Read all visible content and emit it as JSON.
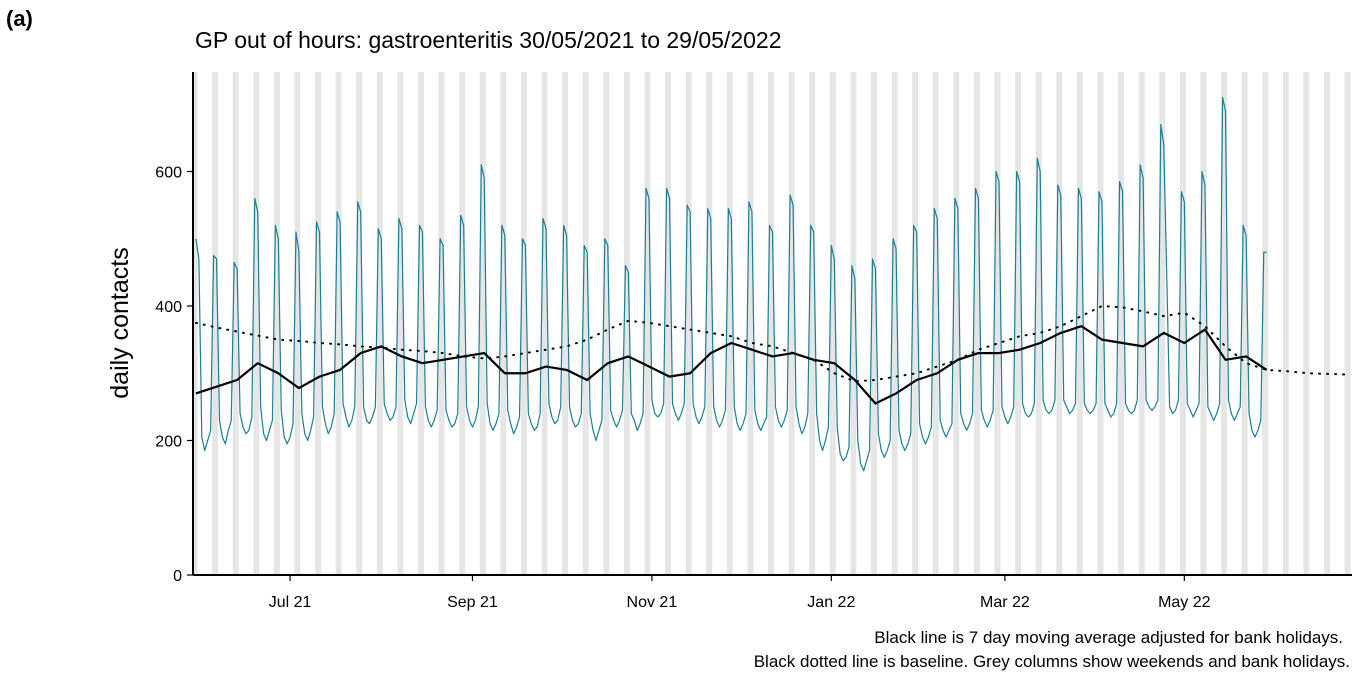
{
  "chart_data": {
    "type": "line",
    "panel_label": "(a)",
    "title": "GP out of hours: gastroenteritis 30/05/2021 to 29/05/2022",
    "y_label": "daily contacts",
    "annotations": [
      "Black line is 7 day moving average adjusted for bank holidays.",
      "Black dotted line is baseline. Grey columns show weekends and bank holidays."
    ],
    "xlim": [
      "2021-05-29",
      "2022-06-27"
    ],
    "xticks": [
      {
        "value": "2021-07-01",
        "label": "Jul 21"
      },
      {
        "value": "2021-09-01",
        "label": "Sep 21"
      },
      {
        "value": "2021-11-01",
        "label": "Nov 21"
      },
      {
        "value": "2022-01-01",
        "label": "Jan 22"
      },
      {
        "value": "2022-03-01",
        "label": "Mar 22"
      },
      {
        "value": "2022-05-01",
        "label": "May 22"
      }
    ],
    "ylim": [
      0,
      748
    ],
    "yticks": [
      0,
      200,
      400,
      600
    ],
    "weekend_shading": true,
    "shade_color": "#e5e5e5",
    "x": [
      "2021-05-30",
      "2021-05-31",
      "2021-06-01",
      "2021-06-02",
      "2021-06-03",
      "2021-06-04",
      "2021-06-05",
      "2021-06-06",
      "2021-06-07",
      "2021-06-08",
      "2021-06-09",
      "2021-06-10",
      "2021-06-11",
      "2021-06-12",
      "2021-06-13",
      "2021-06-14",
      "2021-06-15",
      "2021-06-16",
      "2021-06-17",
      "2021-06-18",
      "2021-06-19",
      "2021-06-20",
      "2021-06-21",
      "2021-06-22",
      "2021-06-23",
      "2021-06-24",
      "2021-06-25",
      "2021-06-26",
      "2021-06-27",
      "2021-06-28",
      "2021-06-29",
      "2021-06-30",
      "2021-07-01",
      "2021-07-02",
      "2021-07-03",
      "2021-07-04",
      "2021-07-05",
      "2021-07-06",
      "2021-07-07",
      "2021-07-08",
      "2021-07-09",
      "2021-07-10",
      "2021-07-11",
      "2021-07-12",
      "2021-07-13",
      "2021-07-14",
      "2021-07-15",
      "2021-07-16",
      "2021-07-17",
      "2021-07-18",
      "2021-07-19",
      "2021-07-20",
      "2021-07-21",
      "2021-07-22",
      "2021-07-23",
      "2021-07-24",
      "2021-07-25",
      "2021-07-26",
      "2021-07-27",
      "2021-07-28",
      "2021-07-29",
      "2021-07-30",
      "2021-07-31",
      "2021-08-01",
      "2021-08-02",
      "2021-08-03",
      "2021-08-04",
      "2021-08-05",
      "2021-08-06",
      "2021-08-07",
      "2021-08-08",
      "2021-08-09",
      "2021-08-10",
      "2021-08-11",
      "2021-08-12",
      "2021-08-13",
      "2021-08-14",
      "2021-08-15",
      "2021-08-16",
      "2021-08-17",
      "2021-08-18",
      "2021-08-19",
      "2021-08-20",
      "2021-08-21",
      "2021-08-22",
      "2021-08-23",
      "2021-08-24",
      "2021-08-25",
      "2021-08-26",
      "2021-08-27",
      "2021-08-28",
      "2021-08-29",
      "2021-08-30",
      "2021-08-31",
      "2021-09-01",
      "2021-09-02",
      "2021-09-03",
      "2021-09-04",
      "2021-09-05",
      "2021-09-06",
      "2021-09-07",
      "2021-09-08",
      "2021-09-09",
      "2021-09-10",
      "2021-09-11",
      "2021-09-12",
      "2021-09-13",
      "2021-09-14",
      "2021-09-15",
      "2021-09-16",
      "2021-09-17",
      "2021-09-18",
      "2021-09-19",
      "2021-09-20",
      "2021-09-21",
      "2021-09-22",
      "2021-09-23",
      "2021-09-24",
      "2021-09-25",
      "2021-09-26",
      "2021-09-27",
      "2021-09-28",
      "2021-09-29",
      "2021-09-30",
      "2021-10-01",
      "2021-10-02",
      "2021-10-03",
      "2021-10-04",
      "2021-10-05",
      "2021-10-06",
      "2021-10-07",
      "2021-10-08",
      "2021-10-09",
      "2021-10-10",
      "2021-10-11",
      "2021-10-12",
      "2021-10-13",
      "2021-10-14",
      "2021-10-15",
      "2021-10-16",
      "2021-10-17",
      "2021-10-18",
      "2021-10-19",
      "2021-10-20",
      "2021-10-21",
      "2021-10-22",
      "2021-10-23",
      "2021-10-24",
      "2021-10-25",
      "2021-10-26",
      "2021-10-27",
      "2021-10-28",
      "2021-10-29",
      "2021-10-30",
      "2021-10-31",
      "2021-11-01",
      "2021-11-02",
      "2021-11-03",
      "2021-11-04",
      "2021-11-05",
      "2021-11-06",
      "2021-11-07",
      "2021-11-08",
      "2021-11-09",
      "2021-11-10",
      "2021-11-11",
      "2021-11-12",
      "2021-11-13",
      "2021-11-14",
      "2021-11-15",
      "2021-11-16",
      "2021-11-17",
      "2021-11-18",
      "2021-11-19",
      "2021-11-20",
      "2021-11-21",
      "2021-11-22",
      "2021-11-23",
      "2021-11-24",
      "2021-11-25",
      "2021-11-26",
      "2021-11-27",
      "2021-11-28",
      "2021-11-29",
      "2021-11-30",
      "2021-12-01",
      "2021-12-02",
      "2021-12-03",
      "2021-12-04",
      "2021-12-05",
      "2021-12-06",
      "2021-12-07",
      "2021-12-08",
      "2021-12-09",
      "2021-12-10",
      "2021-12-11",
      "2021-12-12",
      "2021-12-13",
      "2021-12-14",
      "2021-12-15",
      "2021-12-16",
      "2021-12-17",
      "2021-12-18",
      "2021-12-19",
      "2021-12-20",
      "2021-12-21",
      "2021-12-22",
      "2021-12-23",
      "2021-12-24",
      "2021-12-25",
      "2021-12-26",
      "2021-12-27",
      "2021-12-28",
      "2021-12-29",
      "2021-12-30",
      "2021-12-31",
      "2022-01-01",
      "2022-01-02",
      "2022-01-03",
      "2022-01-04",
      "2022-01-05",
      "2022-01-06",
      "2022-01-07",
      "2022-01-08",
      "2022-01-09",
      "2022-01-10",
      "2022-01-11",
      "2022-01-12",
      "2022-01-13",
      "2022-01-14",
      "2022-01-15",
      "2022-01-16",
      "2022-01-17",
      "2022-01-18",
      "2022-01-19",
      "2022-01-20",
      "2022-01-21",
      "2022-01-22",
      "2022-01-23",
      "2022-01-24",
      "2022-01-25",
      "2022-01-26",
      "2022-01-27",
      "2022-01-28",
      "2022-01-29",
      "2022-01-30",
      "2022-01-31",
      "2022-02-01",
      "2022-02-02",
      "2022-02-03",
      "2022-02-04",
      "2022-02-05",
      "2022-02-06",
      "2022-02-07",
      "2022-02-08",
      "2022-02-09",
      "2022-02-10",
      "2022-02-11",
      "2022-02-12",
      "2022-02-13",
      "2022-02-14",
      "2022-02-15",
      "2022-02-16",
      "2022-02-17",
      "2022-02-18",
      "2022-02-19",
      "2022-02-20",
      "2022-02-21",
      "2022-02-22",
      "2022-02-23",
      "2022-02-24",
      "2022-02-25",
      "2022-02-26",
      "2022-02-27",
      "2022-02-28",
      "2022-03-01",
      "2022-03-02",
      "2022-03-03",
      "2022-03-04",
      "2022-03-05",
      "2022-03-06",
      "2022-03-07",
      "2022-03-08",
      "2022-03-09",
      "2022-03-10",
      "2022-03-11",
      "2022-03-12",
      "2022-03-13",
      "2022-03-14",
      "2022-03-15",
      "2022-03-16",
      "2022-03-17",
      "2022-03-18",
      "2022-03-19",
      "2022-03-20",
      "2022-03-21",
      "2022-03-22",
      "2022-03-23",
      "2022-03-24",
      "2022-03-25",
      "2022-03-26",
      "2022-03-27",
      "2022-03-28",
      "2022-03-29",
      "2022-03-30",
      "2022-03-31",
      "2022-04-01",
      "2022-04-02",
      "2022-04-03",
      "2022-04-04",
      "2022-04-05",
      "2022-04-06",
      "2022-04-07",
      "2022-04-08",
      "2022-04-09",
      "2022-04-10",
      "2022-04-11",
      "2022-04-12",
      "2022-04-13",
      "2022-04-14",
      "2022-04-15",
      "2022-04-16",
      "2022-04-17",
      "2022-04-18",
      "2022-04-19",
      "2022-04-20",
      "2022-04-21",
      "2022-04-22",
      "2022-04-23",
      "2022-04-24",
      "2022-04-25",
      "2022-04-26",
      "2022-04-27",
      "2022-04-28",
      "2022-04-29",
      "2022-04-30",
      "2022-05-01",
      "2022-05-02",
      "2022-05-03",
      "2022-05-04",
      "2022-05-05",
      "2022-05-06",
      "2022-05-07",
      "2022-05-08",
      "2022-05-09",
      "2022-05-10",
      "2022-05-11",
      "2022-05-12",
      "2022-05-13",
      "2022-05-14",
      "2022-05-15",
      "2022-05-16",
      "2022-05-17",
      "2022-05-18",
      "2022-05-19",
      "2022-05-20",
      "2022-05-21",
      "2022-05-22",
      "2022-05-23",
      "2022-05-24",
      "2022-05-25",
      "2022-05-26",
      "2022-05-27",
      "2022-05-28",
      "2022-05-29"
    ],
    "series": [
      {
        "color": "#1a7f93",
        "width": 1.2,
        "values": [
          500,
          470,
          205,
          185,
          200,
          215,
          475,
          470,
          230,
          205,
          195,
          215,
          230,
          465,
          455,
          240,
          220,
          210,
          215,
          235,
          560,
          540,
          250,
          210,
          200,
          215,
          230,
          520,
          500,
          245,
          205,
          195,
          205,
          225,
          510,
          480,
          240,
          210,
          200,
          215,
          235,
          525,
          510,
          250,
          225,
          210,
          220,
          240,
          540,
          525,
          255,
          235,
          220,
          230,
          250,
          555,
          540,
          250,
          230,
          225,
          235,
          250,
          515,
          500,
          255,
          240,
          230,
          235,
          250,
          530,
          515,
          260,
          235,
          225,
          240,
          255,
          520,
          510,
          250,
          230,
          220,
          230,
          245,
          500,
          490,
          245,
          230,
          220,
          225,
          240,
          535,
          520,
          250,
          230,
          220,
          230,
          250,
          610,
          590,
          255,
          225,
          215,
          225,
          240,
          520,
          505,
          245,
          225,
          210,
          220,
          235,
          500,
          490,
          240,
          225,
          215,
          220,
          240,
          530,
          515,
          255,
          235,
          225,
          230,
          250,
          520,
          505,
          250,
          230,
          220,
          225,
          240,
          490,
          480,
          240,
          215,
          200,
          215,
          230,
          500,
          490,
          245,
          230,
          220,
          230,
          245,
          460,
          450,
          240,
          230,
          215,
          225,
          240,
          575,
          560,
          260,
          240,
          235,
          240,
          255,
          575,
          560,
          255,
          240,
          230,
          240,
          255,
          550,
          540,
          255,
          235,
          225,
          235,
          250,
          545,
          530,
          250,
          230,
          220,
          230,
          245,
          545,
          530,
          250,
          225,
          215,
          225,
          240,
          555,
          540,
          245,
          225,
          215,
          225,
          235,
          520,
          510,
          250,
          230,
          220,
          230,
          245,
          565,
          550,
          250,
          225,
          210,
          220,
          240,
          520,
          510,
          240,
          200,
          185,
          200,
          220,
          490,
          470,
          220,
          180,
          170,
          175,
          190,
          460,
          440,
          200,
          165,
          155,
          170,
          185,
          470,
          455,
          210,
          185,
          175,
          185,
          200,
          500,
          485,
          215,
          195,
          185,
          195,
          210,
          520,
          510,
          225,
          205,
          195,
          205,
          220,
          545,
          530,
          230,
          215,
          205,
          215,
          225,
          560,
          545,
          240,
          225,
          215,
          225,
          240,
          575,
          560,
          245,
          230,
          220,
          230,
          245,
          600,
          585,
          250,
          235,
          225,
          235,
          250,
          600,
          585,
          255,
          240,
          235,
          240,
          255,
          620,
          600,
          260,
          245,
          240,
          245,
          260,
          580,
          565,
          260,
          250,
          240,
          245,
          255,
          575,
          560,
          255,
          245,
          240,
          245,
          255,
          570,
          555,
          255,
          245,
          235,
          240,
          255,
          585,
          570,
          255,
          245,
          240,
          245,
          260,
          610,
          590,
          260,
          250,
          245,
          250,
          260,
          670,
          640,
          450,
          250,
          240,
          245,
          260,
          570,
          555,
          255,
          245,
          235,
          245,
          255,
          600,
          580,
          250,
          240,
          230,
          240,
          255,
          710,
          690,
          260,
          240,
          230,
          240,
          250,
          520,
          505,
          240,
          215,
          205,
          215,
          230,
          480,
          480
        ]
      },
      {
        "color": "#000000",
        "width": 2.2,
        "x": [
          "2021-05-30",
          "2021-06-06",
          "2021-06-13",
          "2021-06-20",
          "2021-06-27",
          "2021-07-04",
          "2021-07-11",
          "2021-07-18",
          "2021-07-25",
          "2021-08-01",
          "2021-08-08",
          "2021-08-15",
          "2021-08-22",
          "2021-08-29",
          "2021-09-05",
          "2021-09-12",
          "2021-09-19",
          "2021-09-26",
          "2021-10-03",
          "2021-10-10",
          "2021-10-17",
          "2021-10-24",
          "2021-10-31",
          "2021-11-07",
          "2021-11-14",
          "2021-11-21",
          "2021-11-28",
          "2021-12-05",
          "2021-12-12",
          "2021-12-19",
          "2021-12-26",
          "2022-01-02",
          "2022-01-09",
          "2022-01-16",
          "2022-01-23",
          "2022-01-30",
          "2022-02-06",
          "2022-02-13",
          "2022-02-20",
          "2022-02-27",
          "2022-03-06",
          "2022-03-13",
          "2022-03-20",
          "2022-03-27",
          "2022-04-03",
          "2022-04-10",
          "2022-04-17",
          "2022-04-24",
          "2022-05-01",
          "2022-05-08",
          "2022-05-15",
          "2022-05-22",
          "2022-05-29"
        ],
        "values": [
          270,
          280,
          290,
          315,
          300,
          278,
          295,
          305,
          330,
          340,
          325,
          315,
          320,
          325,
          330,
          300,
          300,
          310,
          305,
          290,
          315,
          325,
          310,
          295,
          300,
          330,
          345,
          335,
          325,
          330,
          320,
          315,
          290,
          255,
          270,
          290,
          300,
          320,
          330,
          330,
          335,
          345,
          360,
          370,
          350,
          345,
          340,
          360,
          345,
          365,
          320,
          325,
          305
        ]
      },
      {
        "color": "#000000",
        "width": 2,
        "dotted": true,
        "x": [
          "2021-05-30",
          "2021-06-06",
          "2021-06-13",
          "2021-06-20",
          "2021-06-27",
          "2021-07-04",
          "2021-07-11",
          "2021-07-18",
          "2021-07-25",
          "2021-08-01",
          "2021-08-08",
          "2021-08-15",
          "2021-08-22",
          "2021-08-29",
          "2021-09-05",
          "2021-09-12",
          "2021-09-19",
          "2021-09-26",
          "2021-10-03",
          "2021-10-10",
          "2021-10-17",
          "2021-10-24",
          "2021-10-31",
          "2021-11-07",
          "2021-11-14",
          "2021-11-21",
          "2021-11-28",
          "2021-12-05",
          "2021-12-12",
          "2021-12-19",
          "2021-12-26",
          "2022-01-02",
          "2022-01-09",
          "2022-01-16",
          "2022-01-23",
          "2022-01-30",
          "2022-02-06",
          "2022-02-13",
          "2022-02-20",
          "2022-02-27",
          "2022-03-06",
          "2022-03-13",
          "2022-03-20",
          "2022-03-27",
          "2022-04-03",
          "2022-04-10",
          "2022-04-17",
          "2022-04-24",
          "2022-05-01",
          "2022-05-08",
          "2022-05-15",
          "2022-05-22",
          "2022-05-29",
          "2022-06-05",
          "2022-06-12",
          "2022-06-19",
          "2022-06-26"
        ],
        "values": [
          375,
          368,
          362,
          356,
          350,
          348,
          345,
          343,
          340,
          338,
          335,
          333,
          330,
          325,
          322,
          325,
          330,
          335,
          340,
          350,
          365,
          378,
          375,
          370,
          365,
          360,
          355,
          345,
          340,
          330,
          320,
          300,
          288,
          290,
          295,
          300,
          310,
          320,
          335,
          345,
          355,
          360,
          370,
          385,
          400,
          398,
          392,
          385,
          390,
          370,
          340,
          315,
          305,
          303,
          300,
          299,
          298
        ]
      }
    ]
  }
}
